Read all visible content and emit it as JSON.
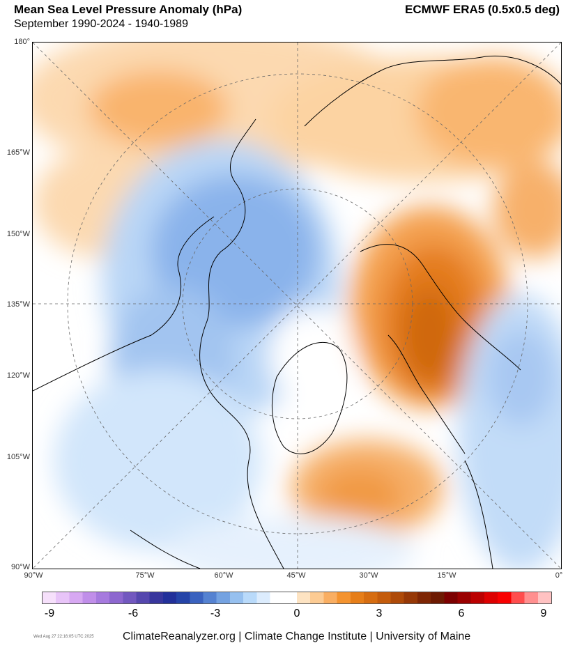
{
  "header": {
    "title": "Mean Sea Level Pressure Anomaly (hPa)",
    "subtitle": "September 1990-2024 - 1940-1989",
    "source": "ECMWF ERA5 (0.5x0.5 deg)"
  },
  "axes": {
    "y_labels": [
      "180°",
      "165°W",
      "150°W",
      "135°W",
      "120°W",
      "105°W",
      "90°W"
    ],
    "x_labels": [
      "90°W",
      "75°W",
      "60°W",
      "45°W",
      "30°W",
      "15°W",
      "0°"
    ]
  },
  "colorbar": {
    "ticks": [
      "-9",
      "-6",
      "-3",
      "0",
      "3",
      "6",
      "9"
    ],
    "range": [
      -9,
      9
    ],
    "colors": [
      "#f6e0fb",
      "#e8c4f8",
      "#d7a8f2",
      "#c08ee9",
      "#a67ade",
      "#8d67cf",
      "#7258bf",
      "#5547ae",
      "#38369d",
      "#22309a",
      "#2544a8",
      "#3a62bf",
      "#5582d1",
      "#74a2e1",
      "#96c0ef",
      "#b9dafa",
      "#dcecfd",
      "#ffffff",
      "#ffffff",
      "#fde3c2",
      "#fccb93",
      "#f9ae62",
      "#f4932f",
      "#e67e19",
      "#d66d11",
      "#c45c0c",
      "#ae4a08",
      "#963806",
      "#7e2604",
      "#6d1a02",
      "#7c0000",
      "#9a0000",
      "#bb0000",
      "#dd0000",
      "#f80000",
      "#ff4d4d",
      "#ff8f8f",
      "#ffc2c2"
    ]
  },
  "footer": {
    "text": "ClimateReanalyzer.org | Climate Change Institute | University of Maine",
    "timestamp": "Wed Aug 27 22:16:05 UTC 2025"
  }
}
